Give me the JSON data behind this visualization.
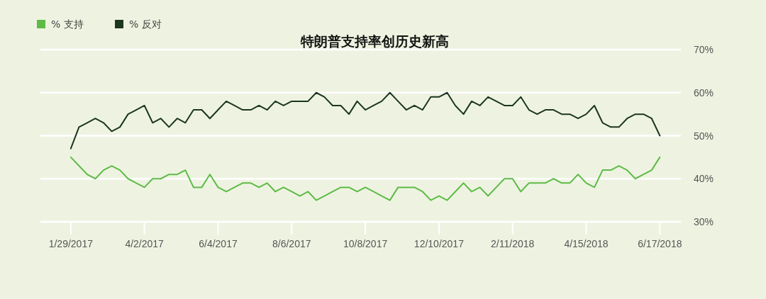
{
  "chart_data": {
    "type": "line",
    "title": "特朗普支持率创历史新高",
    "x": [
      "2017-01-29",
      "2017-02-05",
      "2017-02-12",
      "2017-02-19",
      "2017-02-26",
      "2017-03-05",
      "2017-03-12",
      "2017-03-19",
      "2017-03-26",
      "2017-04-02",
      "2017-04-09",
      "2017-04-16",
      "2017-04-23",
      "2017-04-30",
      "2017-05-07",
      "2017-05-14",
      "2017-05-21",
      "2017-05-28",
      "2017-06-04",
      "2017-06-11",
      "2017-06-18",
      "2017-06-25",
      "2017-07-02",
      "2017-07-09",
      "2017-07-16",
      "2017-07-23",
      "2017-07-30",
      "2017-08-06",
      "2017-08-13",
      "2017-08-20",
      "2017-08-27",
      "2017-09-03",
      "2017-09-10",
      "2017-09-17",
      "2017-09-24",
      "2017-10-01",
      "2017-10-08",
      "2017-10-15",
      "2017-10-22",
      "2017-10-29",
      "2017-11-05",
      "2017-11-12",
      "2017-11-19",
      "2017-11-26",
      "2017-12-03",
      "2017-12-10",
      "2017-12-17",
      "2017-12-24",
      "2017-12-31",
      "2018-01-07",
      "2018-01-14",
      "2018-01-21",
      "2018-01-28",
      "2018-02-04",
      "2018-02-11",
      "2018-02-18",
      "2018-02-25",
      "2018-03-04",
      "2018-03-11",
      "2018-03-18",
      "2018-03-25",
      "2018-04-01",
      "2018-04-08",
      "2018-04-15",
      "2018-04-22",
      "2018-04-29",
      "2018-05-06",
      "2018-05-13",
      "2018-05-20",
      "2018-05-27",
      "2018-06-03",
      "2018-06-10",
      "2018-06-17"
    ],
    "series": [
      {
        "name": "% 支持",
        "color": "#5dbb46",
        "values": [
          45,
          43,
          41,
          40,
          42,
          43,
          42,
          40,
          39,
          38,
          40,
          40,
          41,
          41,
          42,
          38,
          38,
          41,
          38,
          37,
          38,
          39,
          39,
          38,
          39,
          37,
          38,
          37,
          36,
          37,
          35,
          36,
          37,
          38,
          38,
          37,
          38,
          37,
          36,
          35,
          38,
          38,
          38,
          37,
          35,
          36,
          35,
          37,
          39,
          37,
          38,
          36,
          38,
          40,
          40,
          37,
          39,
          39,
          39,
          40,
          39,
          39,
          41,
          39,
          38,
          42,
          42,
          43,
          42,
          40,
          41,
          42,
          45
        ]
      },
      {
        "name": "% 反对",
        "color": "#1c3620",
        "values": [
          47,
          52,
          53,
          54,
          53,
          51,
          52,
          55,
          56,
          57,
          53,
          54,
          52,
          54,
          53,
          56,
          56,
          54,
          56,
          58,
          57,
          56,
          56,
          57,
          56,
          58,
          57,
          58,
          58,
          58,
          60,
          59,
          57,
          57,
          55,
          58,
          56,
          57,
          58,
          60,
          58,
          56,
          57,
          56,
          59,
          59,
          60,
          57,
          55,
          58,
          57,
          59,
          58,
          57,
          57,
          59,
          56,
          55,
          56,
          56,
          55,
          55,
          54,
          55,
          57,
          53,
          52,
          52,
          54,
          55,
          55,
          54,
          50
        ]
      }
    ],
    "xlim": [
      "2017-01-03",
      "2018-07-05"
    ],
    "xticks": [
      {
        "value": "2017-01-29",
        "label": "1/29/2017"
      },
      {
        "value": "2017-04-02",
        "label": "4/2/2017"
      },
      {
        "value": "2017-06-04",
        "label": "6/4/2017"
      },
      {
        "value": "2017-08-06",
        "label": "8/6/2017"
      },
      {
        "value": "2017-10-08",
        "label": "10/8/2017"
      },
      {
        "value": "2017-12-10",
        "label": "12/10/2017"
      },
      {
        "value": "2018-02-11",
        "label": "2/11/2018"
      },
      {
        "value": "2018-04-15",
        "label": "4/15/2018"
      },
      {
        "value": "2018-06-17",
        "label": "6/17/2018"
      }
    ],
    "ylim": [
      30,
      70
    ],
    "yticks": [
      {
        "value": 30,
        "label": "30%"
      },
      {
        "value": 40,
        "label": "40%"
      },
      {
        "value": 50,
        "label": "50%"
      },
      {
        "value": 60,
        "label": "60%"
      },
      {
        "value": 70,
        "label": "70%"
      }
    ],
    "grid": "y",
    "legend": "top left",
    "marker": "none",
    "line_style": "solid"
  }
}
